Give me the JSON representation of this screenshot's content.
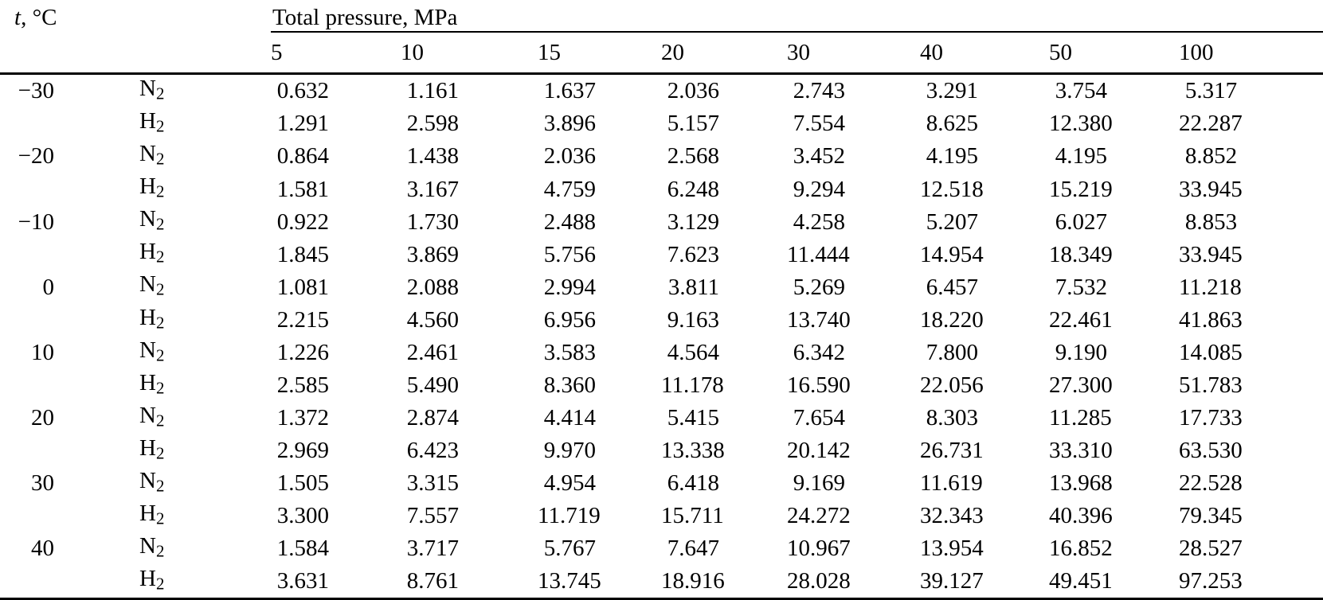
{
  "table": {
    "corner": {
      "symbol": "t",
      "unit": ", °C"
    },
    "pressure_group_label": "Total pressure, MPa",
    "pressure_columns": [
      "5",
      "10",
      "15",
      "20",
      "30",
      "40",
      "50",
      "100"
    ],
    "rows": [
      {
        "t": "−30",
        "gas": "N",
        "gas_sub": "2",
        "values": [
          "0.632",
          "1.161",
          "1.637",
          "2.036",
          "2.743",
          "3.291",
          "3.754",
          "5.317"
        ]
      },
      {
        "t": "",
        "gas": "H",
        "gas_sub": "2",
        "values": [
          "1.291",
          "2.598",
          "3.896",
          "5.157",
          "7.554",
          "8.625",
          "12.380",
          "22.287"
        ]
      },
      {
        "t": "−20",
        "gas": "N",
        "gas_sub": "2",
        "values": [
          "0.864",
          "1.438",
          "2.036",
          "2.568",
          "3.452",
          "4.195",
          "4.195",
          "8.852"
        ]
      },
      {
        "t": "",
        "gas": "H",
        "gas_sub": "2",
        "values": [
          "1.581",
          "3.167",
          "4.759",
          "6.248",
          "9.294",
          "12.518",
          "15.219",
          "33.945"
        ]
      },
      {
        "t": "−10",
        "gas": "N",
        "gas_sub": "2",
        "values": [
          "0.922",
          "1.730",
          "2.488",
          "3.129",
          "4.258",
          "5.207",
          "6.027",
          "8.853"
        ]
      },
      {
        "t": "",
        "gas": "H",
        "gas_sub": "2",
        "values": [
          "1.845",
          "3.869",
          "5.756",
          "7.623",
          "11.444",
          "14.954",
          "18.349",
          "33.945"
        ]
      },
      {
        "t": "0",
        "gas": "N",
        "gas_sub": "2",
        "values": [
          "1.081",
          "2.088",
          "2.994",
          "3.811",
          "5.269",
          "6.457",
          "7.532",
          "11.218"
        ]
      },
      {
        "t": "",
        "gas": "H",
        "gas_sub": "2",
        "values": [
          "2.215",
          "4.560",
          "6.956",
          "9.163",
          "13.740",
          "18.220",
          "22.461",
          "41.863"
        ]
      },
      {
        "t": "10",
        "gas": "N",
        "gas_sub": "2",
        "values": [
          "1.226",
          "2.461",
          "3.583",
          "4.564",
          "6.342",
          "7.800",
          "9.190",
          "14.085"
        ]
      },
      {
        "t": "",
        "gas": "H",
        "gas_sub": "2",
        "values": [
          "2.585",
          "5.490",
          "8.360",
          "11.178",
          "16.590",
          "22.056",
          "27.300",
          "51.783"
        ]
      },
      {
        "t": "20",
        "gas": "N",
        "gas_sub": "2",
        "values": [
          "1.372",
          "2.874",
          "4.414",
          "5.415",
          "7.654",
          "8.303",
          "11.285",
          "17.733"
        ]
      },
      {
        "t": "",
        "gas": "H",
        "gas_sub": "2",
        "values": [
          "2.969",
          "6.423",
          "9.970",
          "13.338",
          "20.142",
          "26.731",
          "33.310",
          "63.530"
        ]
      },
      {
        "t": "30",
        "gas": "N",
        "gas_sub": "2",
        "values": [
          "1.505",
          "3.315",
          "4.954",
          "6.418",
          "9.169",
          "11.619",
          "13.968",
          "22.528"
        ]
      },
      {
        "t": "",
        "gas": "H",
        "gas_sub": "2",
        "values": [
          "3.300",
          "7.557",
          "11.719",
          "15.711",
          "24.272",
          "32.343",
          "40.396",
          "79.345"
        ]
      },
      {
        "t": "40",
        "gas": "N",
        "gas_sub": "2",
        "values": [
          "1.584",
          "3.717",
          "5.767",
          "7.647",
          "10.967",
          "13.954",
          "16.852",
          "28.527"
        ]
      },
      {
        "t": "",
        "gas": "H",
        "gas_sub": "2",
        "values": [
          "3.631",
          "8.761",
          "13.745",
          "18.916",
          "28.028",
          "39.127",
          "49.451",
          "97.253"
        ]
      }
    ]
  }
}
